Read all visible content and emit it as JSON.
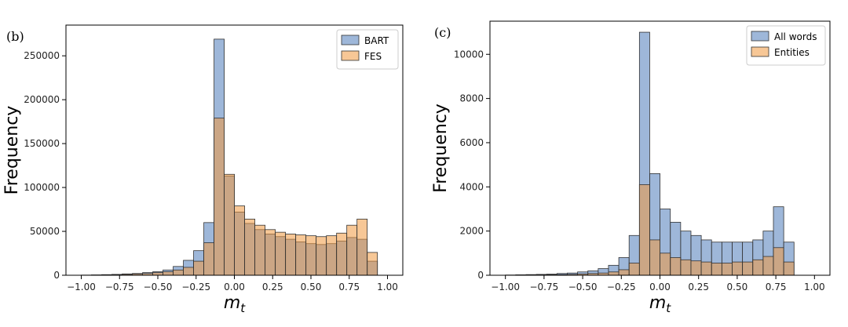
{
  "colors": {
    "blue": "#4f7cb9",
    "orange": "#f0993f",
    "edge": "#333333",
    "axis": "#000000"
  },
  "chart_data": [
    {
      "type": "bar",
      "panel_label": "(b)",
      "title": "",
      "xlabel": "m_t",
      "ylabel": "Frequency",
      "xlim": [
        -1.1,
        1.1
      ],
      "ylim": [
        0,
        285000
      ],
      "xticks": [
        -1.0,
        -0.75,
        -0.5,
        -0.25,
        0.0,
        0.25,
        0.5,
        0.75,
        1.0
      ],
      "xtick_labels": [
        "−1.00",
        "−0.75",
        "−0.50",
        "−0.25",
        "0.00",
        "0.25",
        "0.50",
        "0.75",
        "1.00"
      ],
      "yticks": [
        0,
        50000,
        100000,
        150000,
        200000,
        250000
      ],
      "ytick_labels": [
        "0",
        "50000",
        "100000",
        "150000",
        "200000",
        "250000"
      ],
      "legend_position": "top-right",
      "bins": {
        "start": -1.0,
        "width": 0.0667
      },
      "series": [
        {
          "name": "BART",
          "color": "#4f7cb9",
          "values": [
            200,
            400,
            700,
            1000,
            1500,
            2000,
            3000,
            4000,
            6000,
            10000,
            17000,
            28000,
            60000,
            269000,
            113000,
            72000,
            59000,
            52000,
            47000,
            44000,
            41000,
            38000,
            36000,
            35000,
            36000,
            39000,
            43000,
            41000,
            16000
          ]
        },
        {
          "name": "FES",
          "color": "#f0993f",
          "values": [
            100,
            200,
            400,
            700,
            1000,
            1500,
            2000,
            3000,
            4000,
            6000,
            9000,
            16000,
            37000,
            179000,
            115000,
            79000,
            64000,
            57000,
            52000,
            49000,
            47000,
            46000,
            45000,
            44000,
            45000,
            48000,
            57000,
            64000,
            26000
          ]
        }
      ]
    },
    {
      "type": "bar",
      "panel_label": "(c)",
      "title": "",
      "xlabel": "m_t",
      "ylabel": "Frequency",
      "xlim": [
        -1.1,
        1.1
      ],
      "ylim": [
        0,
        11500
      ],
      "xticks": [
        -1.0,
        -0.75,
        -0.5,
        -0.25,
        0.0,
        0.25,
        0.5,
        0.75,
        1.0
      ],
      "xtick_labels": [
        "−1.00",
        "−0.75",
        "−0.50",
        "−0.25",
        "0.00",
        "0.25",
        "0.50",
        "0.75",
        "1.00"
      ],
      "yticks": [
        0,
        2000,
        4000,
        6000,
        8000,
        10000
      ],
      "ytick_labels": [
        "0",
        "2000",
        "4000",
        "6000",
        "8000",
        "10000"
      ],
      "legend_position": "top-right",
      "bins": {
        "start": -1.0,
        "width": 0.0667
      },
      "series": [
        {
          "name": "All words",
          "color": "#4f7cb9",
          "values": [
            10,
            20,
            30,
            40,
            50,
            80,
            100,
            150,
            200,
            300,
            450,
            800,
            1800,
            11000,
            4600,
            3000,
            2400,
            2000,
            1800,
            1600,
            1500,
            1500,
            1500,
            1500,
            1600,
            2000,
            3100,
            1500
          ]
        },
        {
          "name": "Entities",
          "color": "#f0993f",
          "values": [
            5,
            10,
            15,
            20,
            25,
            30,
            40,
            60,
            80,
            100,
            150,
            250,
            550,
            4100,
            1600,
            1000,
            800,
            700,
            650,
            600,
            550,
            550,
            600,
            600,
            700,
            850,
            1250,
            600
          ]
        }
      ]
    }
  ]
}
